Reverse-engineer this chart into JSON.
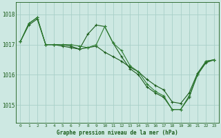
{
  "background_color": "#cde8e2",
  "grid_color": "#a8cfc8",
  "line_color1": "#1a5c1a",
  "line_color2": "#1a5c1a",
  "line_color3": "#2e7d32",
  "x_ticks": [
    0,
    1,
    2,
    3,
    4,
    5,
    6,
    7,
    8,
    9,
    10,
    11,
    12,
    13,
    14,
    15,
    16,
    17,
    18,
    19,
    20,
    21,
    22,
    23
  ],
  "ylim": [
    1014.4,
    1018.4
  ],
  "yticks": [
    1015,
    1016,
    1017,
    1018
  ],
  "xlabel": "Graphe pression niveau de la mer (hPa)",
  "series1": [
    1017.1,
    1017.65,
    1017.85,
    1017.0,
    1017.0,
    1016.95,
    1016.9,
    1016.85,
    1016.9,
    1016.95,
    1016.75,
    1016.6,
    1016.45,
    1016.25,
    1016.1,
    1015.85,
    1015.65,
    1015.5,
    1015.1,
    1015.05,
    1015.4,
    1016.05,
    1016.45,
    1016.5
  ],
  "series2": [
    1017.1,
    1017.7,
    1017.9,
    1017.0,
    1017.0,
    1017.0,
    1016.95,
    1016.85,
    1017.35,
    1017.65,
    1017.6,
    1017.05,
    1016.6,
    1016.2,
    1016.0,
    1015.6,
    1015.4,
    1015.25,
    1014.85,
    1014.85,
    1015.25,
    1016.0,
    1016.4,
    1016.5
  ],
  "series3": [
    1017.1,
    1017.7,
    1017.9,
    1017.0,
    1017.0,
    1017.0,
    1017.0,
    1016.95,
    1016.9,
    1017.0,
    1017.6,
    1017.05,
    1016.8,
    1016.3,
    1016.1,
    1015.7,
    1015.45,
    1015.3,
    1014.85,
    1014.85,
    1015.3,
    1016.0,
    1016.45,
    1016.5
  ]
}
